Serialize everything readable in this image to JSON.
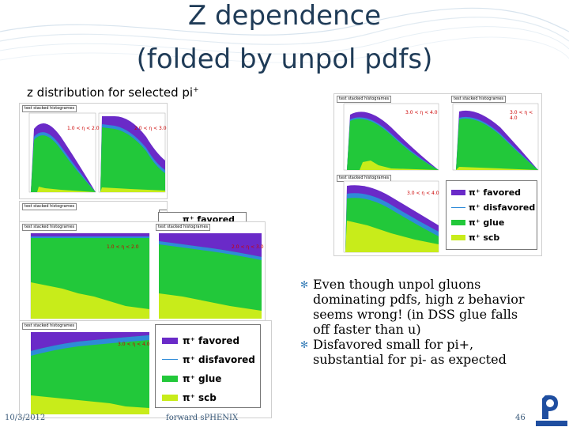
{
  "slide": {
    "title_line1": "Z dependence",
    "title_line2": "(folded by unpol pdfs)",
    "subtitle_prefix": "z distribution for selected pi",
    "subtitle_sup": "+",
    "date": "10/3/2012",
    "center_footer": "forward sPHENIX",
    "page_number": "46"
  },
  "histogram": {
    "panel_title": "test stacked histogrames",
    "bins_left": [
      "1.0 < η < 2.0",
      "2.0 < η < 3.0"
    ],
    "bins_right": [
      "3.0 < η < 4.0",
      "3.0 < η < 4.0",
      "3.0 < η < 4.0"
    ],
    "bins_bottom": [
      "1.0 < η < 2.0",
      "2.0 < η < 3.0",
      "3.0 < η < 4.0"
    ]
  },
  "legend": {
    "items": [
      {
        "label": "π⁺ favored",
        "color": "#6a2ac8"
      },
      {
        "label": "π⁺ disfavored",
        "color": "#2e8bd8"
      },
      {
        "label": "π⁺ glue",
        "color": "#22c83a"
      },
      {
        "label": "π⁺ scb",
        "color": "#c8ec1a"
      }
    ],
    "partial_label": "π⁺ favored"
  },
  "bullets": [
    "Even though unpol gluons dominating pdfs, high z behavior seems wrong! (in DSS glue falls off faster than u)",
    "Disfavored small for pi+, substantial for pi- as expected"
  ],
  "colors": {
    "favored": "#6a2ac8",
    "disfavored": "#2e8bd8",
    "glue": "#22c83a",
    "scb": "#c8ec1a",
    "title": "#1f3b57",
    "bullet_mark": "#3a7fb8"
  },
  "icons": {
    "bullet": "swirl-bullet-icon",
    "logo": "riken-logo"
  }
}
